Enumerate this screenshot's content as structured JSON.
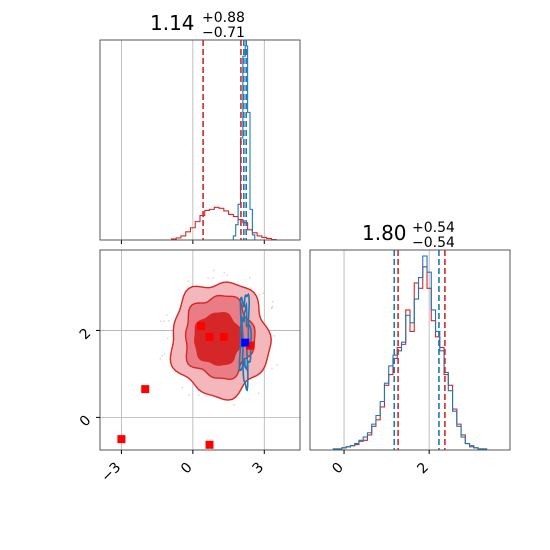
{
  "chart_data": {
    "type": "corner",
    "colors": {
      "series_a": "#d62728",
      "series_b": "#1f77b4",
      "truth_point": "#0000ff",
      "grid": "#b0b0b0",
      "axis": "#555555"
    },
    "panels": [
      {
        "id": "marginal-1",
        "type": "histogram",
        "title": {
          "value": "1.14",
          "plus": "+0.88",
          "minus": "−0.71"
        },
        "xlim": [
          -3.9,
          4.5
        ],
        "grid": true,
        "series": [
          {
            "color": "#d62728",
            "bins_x": [
              -0.8,
              -0.6,
              -0.4,
              -0.2,
              0.0,
              0.2,
              0.4,
              0.6,
              0.8,
              1.0,
              1.2,
              1.4,
              1.6,
              1.8,
              2.0,
              2.2,
              2.4,
              2.6,
              2.8,
              3.0,
              3.2,
              3.4
            ],
            "values": [
              2,
              4,
              8,
              16,
              24,
              36,
              48,
              58,
              60,
              64,
              62,
              57,
              50,
              46,
              40,
              34,
              20,
              14,
              8,
              5,
              3,
              1
            ]
          },
          {
            "color": "#1f77b4",
            "bins_x": [
              1.75,
              1.85,
              1.95,
              2.05,
              2.15,
              2.25,
              2.35,
              2.45,
              2.55
            ],
            "values": [
              8,
              30,
              70,
              200,
              360,
              380,
              250,
              60,
              10
            ]
          }
        ],
        "quantiles": [
          {
            "x": 0.43,
            "color": "#d62728"
          },
          {
            "x": 2.02,
            "color": "#d62728"
          },
          {
            "x": 2.14,
            "color": "#1f77b4"
          },
          {
            "x": 2.24,
            "color": "#1f77b4"
          }
        ],
        "xticks": [
          -3,
          0,
          3
        ]
      },
      {
        "id": "marginal-2",
        "type": "histogram",
        "title": {
          "value": "1.80",
          "plus": "+0.54",
          "minus": "−0.54"
        },
        "xlim": [
          -0.8,
          3.9
        ],
        "xticks": [
          0,
          2
        ],
        "xtick_labels": [
          "0",
          "2"
        ],
        "grid": true,
        "series": [
          {
            "color": "#d62728",
            "bins_x": [
              -0.2,
              -0.1,
              0.0,
              0.1,
              0.2,
              0.3,
              0.4,
              0.5,
              0.6,
              0.7,
              0.8,
              0.9,
              1.0,
              1.1,
              1.2,
              1.3,
              1.4,
              1.5,
              1.6,
              1.7,
              1.8,
              1.9,
              2.0,
              2.1,
              2.2,
              2.3,
              2.4,
              2.5,
              2.6,
              2.7,
              2.8,
              2.9,
              3.0,
              3.1,
              3.2,
              3.3
            ],
            "values": [
              1,
              1,
              2,
              3,
              4,
              5,
              8,
              9,
              14,
              22,
              28,
              40,
              60,
              70,
              85,
              95,
              98,
              130,
              110,
              155,
              150,
              170,
              150,
              120,
              105,
              95,
              70,
              60,
              38,
              24,
              14,
              6,
              4,
              2,
              1,
              1
            ]
          },
          {
            "color": "#1f77b4",
            "bins_x": [
              -0.2,
              -0.1,
              0.0,
              0.1,
              0.2,
              0.3,
              0.4,
              0.5,
              0.6,
              0.7,
              0.8,
              0.9,
              1.0,
              1.1,
              1.2,
              1.3,
              1.4,
              1.5,
              1.6,
              1.7,
              1.8,
              1.9,
              2.0,
              2.1,
              2.2,
              2.3,
              2.4,
              2.5,
              2.6,
              2.7,
              2.8,
              2.9,
              3.0,
              3.1,
              3.2,
              3.3
            ],
            "values": [
              1,
              1,
              2,
              3,
              4,
              6,
              9,
              12,
              16,
              24,
              32,
              45,
              62,
              78,
              88,
              92,
              100,
              125,
              118,
              140,
              160,
              180,
              165,
              130,
              110,
              92,
              72,
              55,
              36,
              22,
              12,
              6,
              3,
              2,
              1,
              1
            ]
          }
        ],
        "quantiles": [
          {
            "x": 1.18,
            "color": "#1f77b4"
          },
          {
            "x": 1.27,
            "color": "#d62728"
          },
          {
            "x": 2.23,
            "color": "#1f77b4"
          },
          {
            "x": 2.37,
            "color": "#d62728"
          }
        ]
      },
      {
        "id": "joint",
        "type": "scatter-contour",
        "xlim": [
          -3.9,
          4.5
        ],
        "ylim": [
          -0.75,
          3.85
        ],
        "xticks": [
          -3,
          0,
          3
        ],
        "xtick_labels": [
          "−3",
          "0",
          "3"
        ],
        "yticks": [
          0,
          2
        ],
        "ytick_labels": [
          "0",
          "2"
        ],
        "grid": true,
        "series": [
          {
            "color": "#d62728",
            "contours_outer": {
              "cx": 1.14,
              "cy": 1.8,
              "rx": 2.05,
              "ry": 1.32
            },
            "contours_inner": {
              "cx": 1.1,
              "cy": 1.85,
              "rx": 1.45,
              "ry": 0.95
            },
            "core": {
              "cx": 1.05,
              "cy": 1.8,
              "rx": 1.0,
              "ry": 0.6
            }
          },
          {
            "color": "#1f77b4",
            "contours_outer": {
              "cx": 2.2,
              "cy": 1.8,
              "rx": 0.22,
              "ry": 1.0
            },
            "contours_inner": {
              "cx": 2.2,
              "cy": 1.8,
              "rx": 0.12,
              "ry": 0.65
            }
          }
        ],
        "points": [
          {
            "x": -3.0,
            "y": -0.5,
            "color": "#ff0000"
          },
          {
            "x": -2.0,
            "y": 0.65,
            "color": "#ff0000"
          },
          {
            "x": 0.7,
            "y": -0.63,
            "color": "#ff0000"
          },
          {
            "x": 0.35,
            "y": 2.1,
            "color": "#ff0000"
          },
          {
            "x": 0.7,
            "y": 1.85,
            "color": "#ff0000"
          },
          {
            "x": 1.3,
            "y": 1.85,
            "color": "#ff0000"
          },
          {
            "x": 2.4,
            "y": 1.65,
            "color": "#ff0000"
          },
          {
            "x": 2.2,
            "y": 1.72,
            "color": "#0000ff"
          }
        ]
      }
    ]
  }
}
